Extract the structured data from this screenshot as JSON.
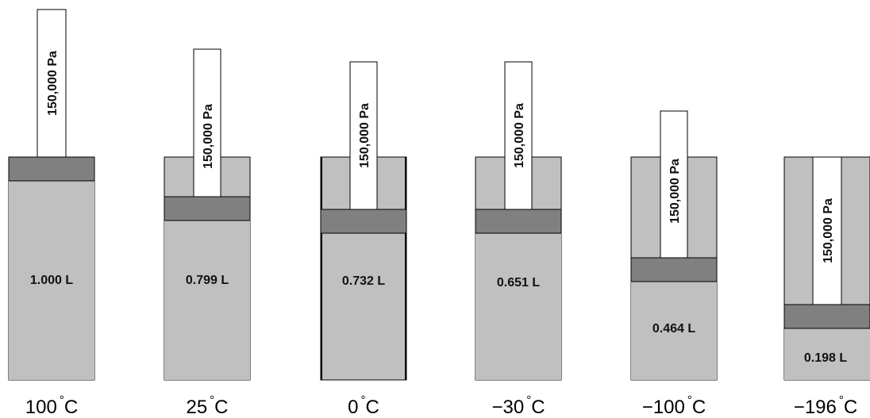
{
  "panels": [
    {
      "temperature": "100",
      "degree_symbol": "°",
      "unit": "C",
      "volume_label": "1.000 L",
      "volume_liters": 1.0,
      "pressure_label": "150,000 Pa"
    },
    {
      "temperature": "25",
      "degree_symbol": "°",
      "unit": "C",
      "volume_label": "0.799 L",
      "volume_liters": 0.799,
      "pressure_label": "150,000 Pa"
    },
    {
      "temperature": "0",
      "degree_symbol": "°",
      "unit": "C",
      "volume_label": "0.732 L",
      "volume_liters": 0.732,
      "pressure_label": "150,000 Pa"
    },
    {
      "temperature": "−30",
      "degree_symbol": "°",
      "unit": "C",
      "volume_label": "0.651 L",
      "volume_liters": 0.651,
      "pressure_label": "150,000 Pa"
    },
    {
      "temperature": "−100",
      "degree_symbol": "°",
      "unit": "C",
      "volume_label": "0.464 L",
      "volume_liters": 0.464,
      "pressure_label": "150,000 Pa"
    },
    {
      "temperature": "−196",
      "degree_symbol": "°",
      "unit": "C",
      "volume_label": "0.198 L",
      "volume_liters": 0.198,
      "pressure_label": "150,000 Pa"
    }
  ],
  "colors": {
    "cylinder_fill": "#c0c0c0",
    "piston_fill": "#808080",
    "rod_fill": "#ffffff",
    "outline": "#000000"
  }
}
